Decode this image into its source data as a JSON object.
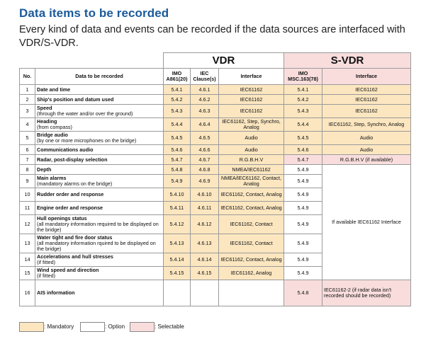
{
  "heading": {
    "title": "Data items to be recorded",
    "subtitle": "Every kind of data and events can be recorded if the data sources are interfaced with VDR/S-VDR."
  },
  "groups": {
    "vdr": "VDR",
    "svdr": "S-VDR"
  },
  "columns": {
    "no": "No.",
    "item": "Data to be recorded",
    "imo_a861": "IMO A861(20)",
    "iec_clause": "IEC Clause(s)",
    "vdr_interface": "Interface",
    "imo_msc": "IMO MSC.163(78)",
    "svdr_interface": "Interface"
  },
  "rows": [
    {
      "no": "1",
      "title": "Date and time",
      "note": "",
      "imo": "5.4.1",
      "iec": "4.6.1",
      "vdr_if": "IEC61162",
      "msc": "5.4.1",
      "svdr_if": "IEC61162"
    },
    {
      "no": "2",
      "title": "Ship's position and datum used",
      "note": "",
      "imo": "5.4.2",
      "iec": "4.6.2",
      "vdr_if": "IEC61162",
      "msc": "5.4.2",
      "svdr_if": "IEC61162"
    },
    {
      "no": "3",
      "title": "Speed",
      "note": "(through the water and/or over the ground)",
      "imo": "5.4.3",
      "iec": "4.6.3",
      "vdr_if": "IEC61162",
      "msc": "5.4.3",
      "svdr_if": "IEC61162"
    },
    {
      "no": "4",
      "title": "Heading",
      "note": "(from compass)",
      "imo": "5.4.4",
      "iec": "4.6.4",
      "vdr_if": "IEC61162, Step, Synchro, Analog",
      "msc": "5.4.4",
      "svdr_if": "IEC61162, Step, Synchro, Analog"
    },
    {
      "no": "5",
      "title": "Bridge audio",
      "note": "(by one or more microphones on the bridge)",
      "imo": "5.4.5",
      "iec": "4.6.5",
      "vdr_if": "Audio",
      "msc": "5.4.5",
      "svdr_if": "Audio"
    },
    {
      "no": "6",
      "title": "Communications audio",
      "note": "",
      "imo": "5.4.6",
      "iec": "4.6.6",
      "vdr_if": "Audio",
      "msc": "5.4.6",
      "svdr_if": "Audio"
    },
    {
      "no": "7",
      "title": "Radar, post-display selection",
      "note": "",
      "imo": "5.4.7",
      "iec": "4.6.7",
      "vdr_if": "R.G.B.H.V",
      "msc": "5.4.7",
      "svdr_if": "R.G.B.H.V (if available)"
    },
    {
      "no": "8",
      "title": "Depth",
      "note": "",
      "imo": "5.4.8",
      "iec": "4.6.8",
      "vdr_if": "NMEA/IEC61162",
      "msc": "5.4.9",
      "svdr_if": ""
    },
    {
      "no": "9",
      "title": "Main alarms",
      "note": "(mandatory alarms on the bridge)",
      "imo": "5.4.9",
      "iec": "4.6.9",
      "vdr_if": "NMEA/IEC61162, Contact, Analog",
      "msc": "5.4.9",
      "svdr_if": ""
    },
    {
      "no": "10",
      "title": "Rudder order and response",
      "note": "",
      "imo": "5.4.10",
      "iec": "4.6.10",
      "vdr_if": "IEC61162, Contact, Analog",
      "msc": "5.4.9",
      "svdr_if": ""
    },
    {
      "no": "11",
      "title": "Engine order and response",
      "note": "",
      "imo": "5.4.11",
      "iec": "4.6.11",
      "vdr_if": "IEC61162, Contact, Analog",
      "msc": "5.4.9",
      "svdr_if": ""
    },
    {
      "no": "12",
      "title": "Hull openings status",
      "note": "(all mandatory information required to be displayed on the bridge)",
      "imo": "5.4.12",
      "iec": "4.6.12",
      "vdr_if": "IEC61162, Contact",
      "msc": "5.4.9",
      "svdr_if": ""
    },
    {
      "no": "13",
      "title": "Water tight and fire door status",
      "note": "(all mandatory information rquired to be displayed on the bridge)",
      "imo": "5.4.13",
      "iec": "4.6.13",
      "vdr_if": "IEC61162, Contact",
      "msc": "5.4.9",
      "svdr_if": ""
    },
    {
      "no": "14",
      "title": "Accelerations and hull stresses",
      "note": "(if fitted)",
      "imo": "5.4.14",
      "iec": "4.6.14",
      "vdr_if": "IEC61162, Contact, Analog",
      "msc": "5.4.9",
      "svdr_if": ""
    },
    {
      "no": "15",
      "title": "Wind speed and direction",
      "note": "(if fitted)",
      "imo": "5.4.15",
      "iec": "4.6.15",
      "vdr_if": "IEC61162, Analog",
      "msc": "5.4.9",
      "svdr_if": ""
    },
    {
      "no": "16",
      "title": "AIS information",
      "note": "",
      "imo": "",
      "iec": "",
      "vdr_if": "",
      "msc": "5.4.8",
      "svdr_if": "IEC61162-2 (if radar data isn't recorded should be recorded)"
    }
  ],
  "merged_svdr_interface": "If available IEC61162 Interface",
  "legend": {
    "mandatory": ": Mandatory",
    "option": ": Option",
    "selectable": ": Selectable"
  },
  "colors": {
    "title": "#1a5a9a",
    "mandatory": "#fbe6c0",
    "option": "#ffffff",
    "selectable": "#f9dddd"
  }
}
